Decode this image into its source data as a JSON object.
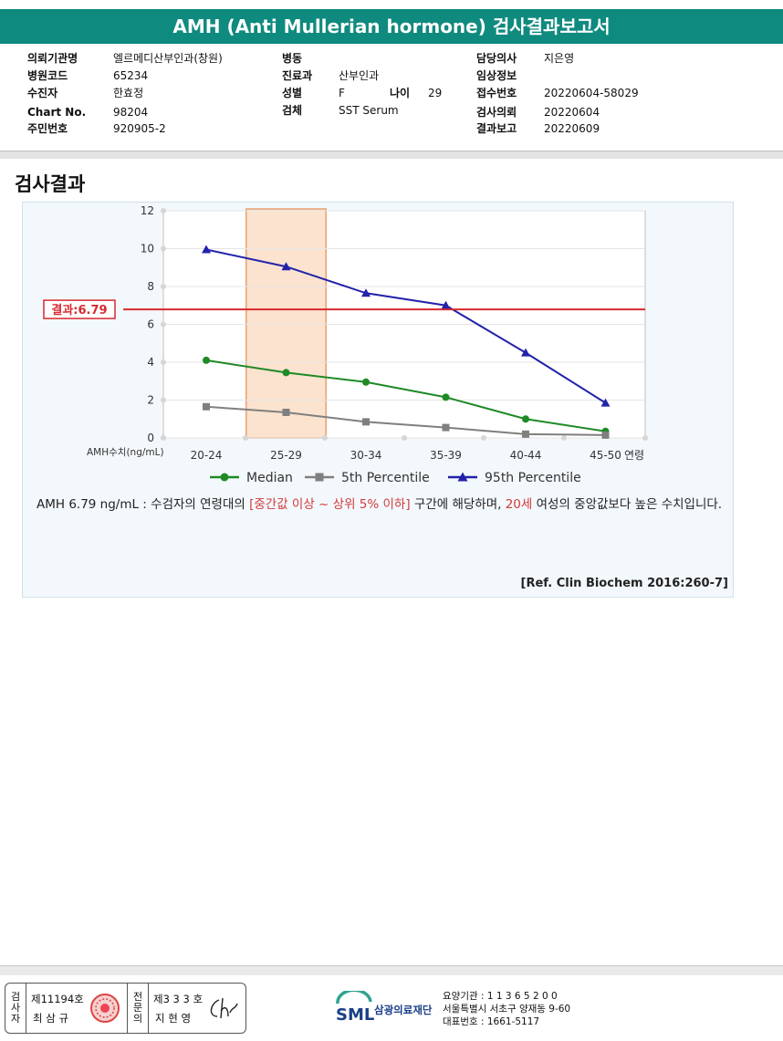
{
  "report": {
    "title": "AMH (Anti Mullerian hormone) 검사결과보고서",
    "fields": {
      "hospital": {
        "label": "의뢰기관명",
        "value": "엘르메디산부인과(창원)"
      },
      "hospital_code": {
        "label": "병원코드",
        "value": "65234"
      },
      "patient": {
        "label": "수진자",
        "value": "한효정"
      },
      "chart_no": {
        "label": "Chart No.",
        "value": "98204"
      },
      "resident_no": {
        "label": "주민번호",
        "value": "920905-2"
      },
      "ward": {
        "label": "병동",
        "value": ""
      },
      "department": {
        "label": "진료과",
        "value": "산부인과"
      },
      "sex": {
        "label": "성별",
        "value": "F"
      },
      "age": {
        "label": "나이",
        "value": "29"
      },
      "specimen": {
        "label": "검체",
        "value": "SST Serum"
      },
      "doctor": {
        "label": "담당의사",
        "value": "지은영"
      },
      "clinical_info": {
        "label": "임상정보",
        "value": ""
      },
      "receipt_no": {
        "label": "접수번호",
        "value": "20220604-58029"
      },
      "request_date": {
        "label": "검사의뢰",
        "value": "20220604"
      },
      "report_date": {
        "label": "결과보고",
        "value": "20220609"
      }
    }
  },
  "section": {
    "title": "검사결과"
  },
  "chart_data": {
    "type": "line",
    "categories": [
      "20-24",
      "25-29",
      "30-34",
      "35-39",
      "40-44",
      "45-50"
    ],
    "x_axis_suffix": "연령",
    "ylabel": "AMH수치(ng/mL)",
    "ylim": [
      0,
      12
    ],
    "yticks": [
      0,
      2,
      4,
      6,
      8,
      10,
      12
    ],
    "grid": true,
    "highlight_category": "25-29",
    "highlight_color": "#fbe3cf",
    "result_line": {
      "value": 6.79,
      "label": "결과:6.79",
      "color": "#d7282f"
    },
    "series": [
      {
        "name": "Median",
        "color": "#1f8a26",
        "marker": "circle",
        "values": [
          4.1,
          3.45,
          2.95,
          2.15,
          1.0,
          0.35
        ]
      },
      {
        "name": "5th Percentile",
        "color": "#7f7f7f",
        "marker": "square",
        "values": [
          1.65,
          1.35,
          0.85,
          0.55,
          0.2,
          0.15
        ]
      },
      {
        "name": "95th Percentile",
        "color": "#2222aa",
        "marker": "triangle",
        "values": [
          9.95,
          9.05,
          7.65,
          7.0,
          4.5,
          1.85
        ]
      }
    ]
  },
  "interpretation": {
    "part1": "AMH  6.79 ng/mL : 수검자의 연령대의 ",
    "part2": "[중간값 이상 ~ 상위 5% 이하]",
    "part3": "  구간에 해당하며, ",
    "part4": "20세",
    "part5": " 여성의 중앙값보다 높은 수치입니다."
  },
  "reference": "[Ref. Clin Biochem 2016:260-7]",
  "footer": {
    "tester_label": "검사자",
    "tester_license": "제11194호",
    "tester_name": "최 삼 규",
    "specialist_label": "전문의",
    "specialist_license": "제3 3 3 호",
    "specialist_name": "지 현 영",
    "sml_logo_text": "SML",
    "org_name": "삼광의료재단",
    "care_code": "요양기관 : 1 1 3 6 5 2 0 0",
    "address": "서울특별시 서초구 양재동 9-60",
    "phone": "대표번호 : 1661-5117"
  }
}
